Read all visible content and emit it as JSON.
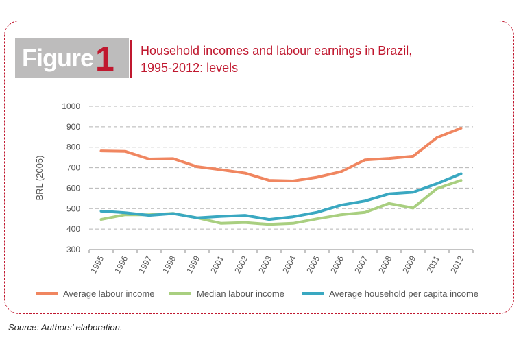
{
  "figure": {
    "label_word": "Figure",
    "label_number": "1"
  },
  "title_line1": "Household incomes and labour earnings in Brazil,",
  "title_line2": "1995-2012: levels",
  "source": "Source: Authors’ elaboration.",
  "colors": {
    "accent": "#c0182f",
    "average_labour": "#f08660",
    "median_labour": "#a9cf80",
    "household_per_capita": "#3aa8c1"
  },
  "chart_data": {
    "type": "line",
    "categories": [
      "1995",
      "1996",
      "1997",
      "1998",
      "1999",
      "2001",
      "2002",
      "2003",
      "2004",
      "2005",
      "2006",
      "2007",
      "2008",
      "2009",
      "2011",
      "2012"
    ],
    "ylabel": "BRL (2005)",
    "xlabel": "",
    "ylim": [
      300,
      1000
    ],
    "yticks": [
      300,
      400,
      500,
      600,
      700,
      800,
      900,
      1000
    ],
    "grid": "horizontal dashed",
    "legend_position": "bottom",
    "series": [
      {
        "name": "Average labour income",
        "values": [
          782,
          780,
          742,
          744,
          705,
          690,
          673,
          638,
          635,
          653,
          680,
          738,
          745,
          756,
          847,
          893
        ]
      },
      {
        "name": "Median labour income",
        "values": [
          447,
          470,
          470,
          477,
          455,
          428,
          432,
          423,
          428,
          450,
          470,
          482,
          525,
          503,
          598,
          638
        ]
      },
      {
        "name": "Average household per capita income",
        "values": [
          488,
          480,
          467,
          476,
          455,
          462,
          467,
          447,
          460,
          482,
          517,
          537,
          572,
          580,
          622,
          670
        ]
      }
    ]
  }
}
